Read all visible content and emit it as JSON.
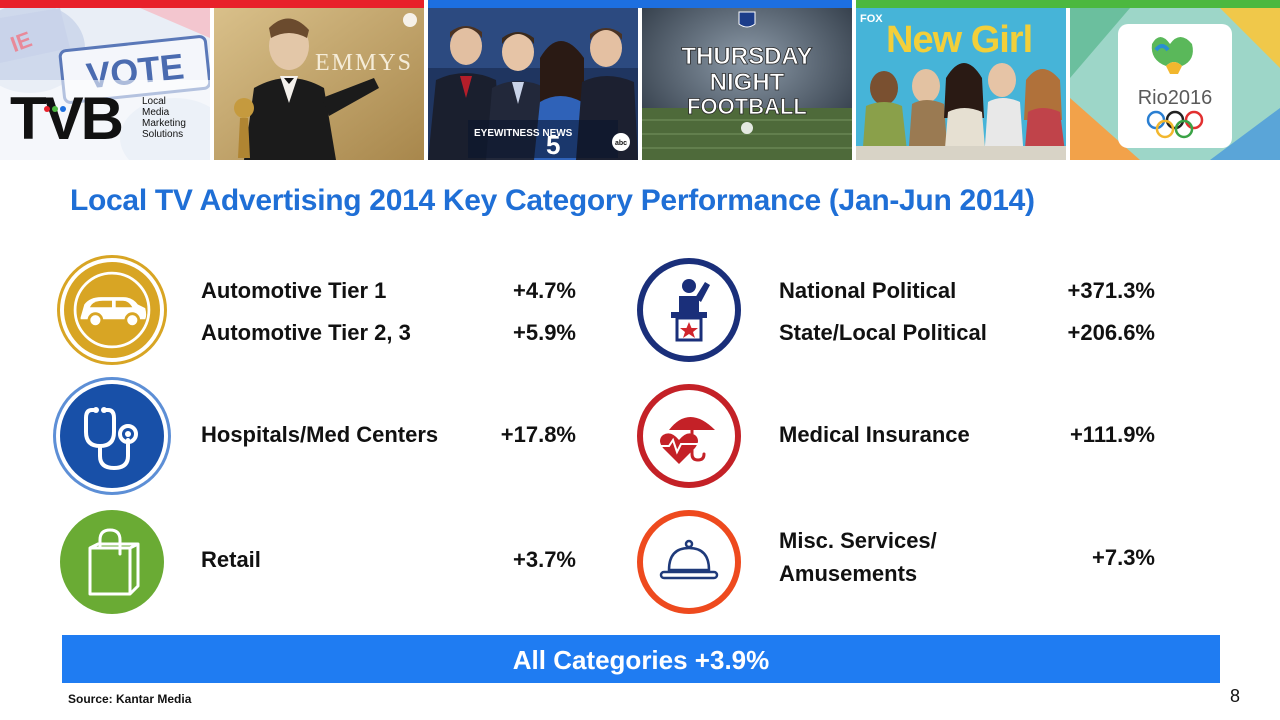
{
  "header": {
    "logo_text": "TVB",
    "logo_tagline": [
      "Local",
      "Media",
      "Marketing",
      "Solutions"
    ],
    "vote_text": "VOTE",
    "emmys_text": "EMMYS",
    "news_text": "EYEWITNESS NEWS",
    "news_number": "5",
    "tnf_lines": [
      "THURSDAY",
      "NIGHT",
      "FOOTBALL"
    ],
    "newgirl_text": "New Girl",
    "fox_text": "FOX",
    "rio_text": "Rio2016",
    "colors": {
      "red": "#e8202a",
      "blue": "#1d6fe0",
      "green": "#4cb83f"
    }
  },
  "title": "Local TV Advertising 2014 Key Category Performance (Jan-Jun 2014)",
  "categories": {
    "auto1": {
      "label": "Automotive Tier 1",
      "value": "+4.7%",
      "icon": "car-icon",
      "color": "#d8a524"
    },
    "auto23": {
      "label": "Automotive Tier 2, 3",
      "value": "+5.9%"
    },
    "hospitals": {
      "label": "Hospitals/Med Centers",
      "value": "+17.8%",
      "icon": "stethoscope-icon",
      "color": "#1850a8"
    },
    "retail": {
      "label": "Retail",
      "value": "+3.7%",
      "icon": "shopping-bag-icon",
      "color": "#6aab34"
    },
    "national_political": {
      "label": "National Political",
      "value": "+371.3%",
      "icon": "politician-podium-icon",
      "color": "#1a2f7a"
    },
    "state_political": {
      "label": "State/Local Political",
      "value": "+206.6%"
    },
    "medical_insurance": {
      "label": "Medical Insurance",
      "value": "+111.9%",
      "icon": "umbrella-heart-icon",
      "color": "#c42127"
    },
    "misc": {
      "label_line1": "Misc. Services/",
      "label_line2": "Amusements",
      "value": "+7.3%",
      "icon": "service-bell-icon",
      "color": "#ee4a1e"
    }
  },
  "all_categories": "All Categories +3.9%",
  "source": "Source: Kantar Media",
  "page_number": "8"
}
